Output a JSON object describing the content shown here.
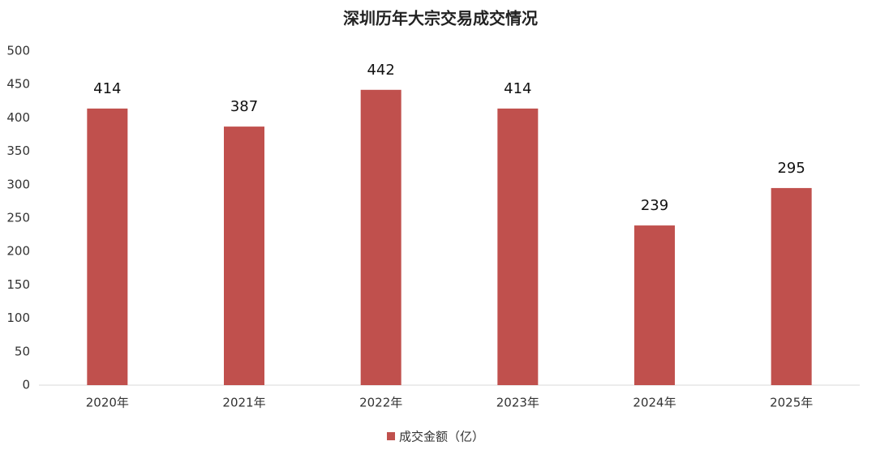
{
  "chart_data": {
    "type": "bar",
    "title": "深圳历年大宗交易成交情况",
    "categories": [
      "2020年",
      "2021年",
      "2022年",
      "2023年",
      "2024年",
      "2025年"
    ],
    "series": [
      {
        "name": "成交金额（亿）",
        "color": "#c0504d",
        "values": [
          414,
          387,
          442,
          414,
          239,
          295
        ]
      }
    ],
    "ylim": [
      0,
      500
    ],
    "yticks": [
      0,
      50,
      100,
      150,
      200,
      250,
      300,
      350,
      400,
      450,
      500
    ],
    "grid": false,
    "legend": "bottom"
  }
}
